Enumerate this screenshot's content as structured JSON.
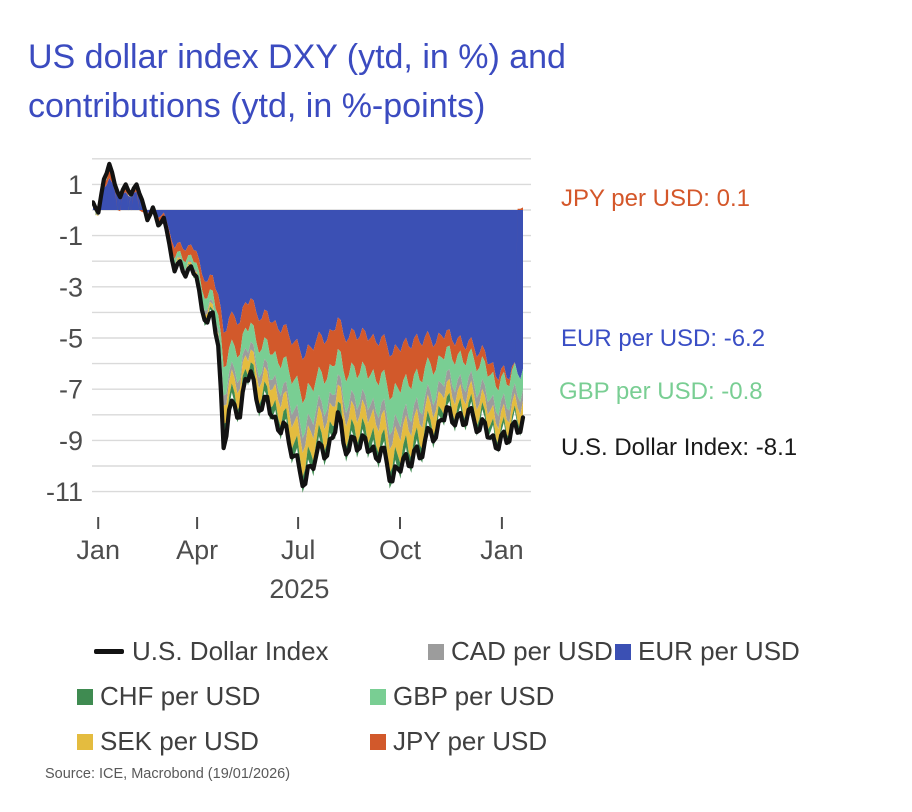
{
  "title": {
    "line1": "US dollar index DXY (ytd, in %) and",
    "line2": "contributions (ytd, in %-points)"
  },
  "annotations": [
    {
      "id": "jpy",
      "text": "JPY per USD: 0.1",
      "color": "#d4572a"
    },
    {
      "id": "eur",
      "text": "EUR per USD: -6.2",
      "color": "#3a4ec5"
    },
    {
      "id": "gbp",
      "text": "GBP per USD: -0.8",
      "color": "#79ce93"
    },
    {
      "id": "usd-index",
      "text": "U.S. Dollar Index: -8.1",
      "color": "#1a1a1a"
    }
  ],
  "legend": {
    "items": [
      {
        "label": "U.S. Dollar Index",
        "marker": "line",
        "color": "#121212"
      },
      {
        "label": "CAD per USD",
        "marker": "square",
        "color": "#9c9c9c"
      },
      {
        "label": "EUR per USD",
        "marker": "square",
        "color": "#3b50b4"
      },
      {
        "label": "CHF per USD",
        "marker": "square",
        "color": "#3f8b51"
      },
      {
        "label": "GBP per USD",
        "marker": "square",
        "color": "#79ce93"
      },
      {
        "label": "SEK per USD",
        "marker": "square",
        "color": "#e4bc3f"
      },
      {
        "label": "JPY per USD",
        "marker": "square",
        "color": "#d2592b"
      }
    ]
  },
  "source": {
    "text": "Source: ICE, Macrobond (19/01/2026)"
  },
  "chart_data": {
    "type": "area",
    "title": "US dollar index DXY (ytd, in %) and contributions (ytd, in %-points)",
    "ylabel": "",
    "xlabel": "",
    "ylim": [
      -11.5,
      2.1
    ],
    "grid": true,
    "x_axis": {
      "ticks": [
        {
          "label": "Jan",
          "pos": 0.012
        },
        {
          "label": "Apr",
          "pos": 0.242
        },
        {
          "label": "Jul",
          "pos": 0.477
        },
        {
          "label": "Oct",
          "pos": 0.714
        },
        {
          "label": "Jan",
          "pos": 0.951
        }
      ],
      "year_label": {
        "text": "2025",
        "pos": 0.48
      }
    },
    "y_axis": {
      "ticks": [
        {
          "label": "1",
          "value": 1
        },
        {
          "label": "-1",
          "value": -1
        },
        {
          "label": "-3",
          "value": -3
        },
        {
          "label": "-5",
          "value": -5
        },
        {
          "label": "-7",
          "value": -7
        },
        {
          "label": "-9",
          "value": -9
        },
        {
          "label": "-11",
          "value": -11
        }
      ],
      "gridline_max": 2,
      "gridline_min": -11,
      "gridline_step": 1
    },
    "final_values": {
      "usd_index": -8.1,
      "eur": -6.2,
      "gbp": -0.8,
      "jpy": 0.1
    },
    "line_series": {
      "id": "usd-index",
      "name": "U.S. Dollar Index",
      "color": "#121212",
      "values": [
        0.3,
        -0.1,
        1.2,
        1.8,
        1.0,
        0.5,
        1.0,
        0.6,
        1.0,
        0.4,
        -0.4,
        0.1,
        -0.6,
        -0.3,
        -1.3,
        -2.4,
        -2.0,
        -2.6,
        -2.2,
        -2.6,
        -3.9,
        -4.4,
        -4.0,
        -5.3,
        -9.3,
        -7.8,
        -7.6,
        -8.1,
        -6.6,
        -6.3,
        -7.4,
        -7.8,
        -7.3,
        -8.1,
        -8.6,
        -8.3,
        -9.1,
        -9.6,
        -10.2,
        -10.7,
        -10.0,
        -9.6,
        -9.2,
        -9.6,
        -8.9,
        -7.9,
        -9.1,
        -9.4,
        -8.9,
        -9.3,
        -8.9,
        -9.4,
        -9.7,
        -9.3,
        -9.9,
        -10.6,
        -10.1,
        -9.7,
        -10.0,
        -9.4,
        -9.7,
        -9.0,
        -8.6,
        -8.9,
        -8.2,
        -7.7,
        -8.3,
        -8.0,
        -8.4,
        -7.8,
        -8.2,
        -8.6,
        -8.3,
        -8.9,
        -9.3,
        -8.8,
        -9.1,
        -8.4,
        -8.7,
        -8.1
      ]
    },
    "stack_series": [
      {
        "id": "eur",
        "name": "EUR per USD",
        "color": "#3b50b4",
        "values": [
          0.25,
          0.1,
          0.85,
          1.25,
          0.75,
          0.45,
          0.7,
          0.5,
          0.72,
          0.35,
          -0.15,
          0.15,
          -0.3,
          -0.1,
          -0.8,
          -1.5,
          -1.25,
          -1.6,
          -1.35,
          -1.6,
          -2.5,
          -2.8,
          -2.55,
          -3.3,
          -4.8,
          -4.2,
          -4.15,
          -4.4,
          -3.6,
          -3.45,
          -4.0,
          -4.25,
          -3.95,
          -4.4,
          -4.65,
          -4.5,
          -4.9,
          -5.15,
          -5.45,
          -5.7,
          -5.35,
          -5.1,
          -4.9,
          -5.08,
          -4.72,
          -4.2,
          -4.85,
          -5.0,
          -4.72,
          -4.95,
          -4.74,
          -5.0,
          -5.17,
          -4.95,
          -5.27,
          -5.65,
          -5.38,
          -5.17,
          -5.32,
          -5.0,
          -5.17,
          -4.95,
          -5.0,
          -5.2,
          -4.9,
          -4.7,
          -5.1,
          -5.0,
          -5.3,
          -5.1,
          -5.35,
          -5.6,
          -5.5,
          -6.0,
          -6.5,
          -6.2,
          -6.55,
          -6.1,
          -6.4,
          -6.2
        ]
      },
      {
        "id": "jpy",
        "name": "JPY per USD",
        "color": "#d2592b",
        "values": [
          0.05,
          -0.15,
          0.2,
          0.3,
          0.1,
          -0.05,
          0.15,
          -0.02,
          0.12,
          -0.08,
          -0.2,
          -0.08,
          -0.22,
          -0.15,
          -0.25,
          -0.42,
          -0.35,
          -0.45,
          -0.4,
          -0.46,
          -0.6,
          -0.65,
          -0.6,
          -0.8,
          -1.35,
          -1.2,
          -1.15,
          -1.25,
          -1.0,
          -0.95,
          -1.15,
          -1.2,
          -1.12,
          -1.25,
          -1.33,
          -1.28,
          -1.4,
          -1.48,
          -1.57,
          -1.65,
          -1.55,
          -1.5,
          -1.43,
          -1.52,
          -1.39,
          -1.23,
          -1.42,
          -1.47,
          -1.39,
          -1.45,
          -1.37,
          -1.44,
          -1.51,
          -1.41,
          -1.54,
          -1.65,
          -1.57,
          -1.48,
          -1.55,
          -1.43,
          -1.48,
          -1.2,
          -1.0,
          -1.05,
          -0.85,
          -0.65,
          -0.75,
          -0.65,
          -0.65,
          -0.5,
          -0.48,
          -0.55,
          -0.42,
          -0.45,
          -0.4,
          -0.32,
          -0.28,
          -0.15,
          0.05,
          0.1
        ]
      },
      {
        "id": "gbp",
        "name": "GBP per USD",
        "color": "#79ce93",
        "values": [
          0.02,
          -0.05,
          0.1,
          0.15,
          0.1,
          0.08,
          0.1,
          0.08,
          0.1,
          0.08,
          -0.03,
          0.02,
          -0.05,
          -0.03,
          -0.12,
          -0.25,
          -0.2,
          -0.28,
          -0.22,
          -0.27,
          -0.4,
          -0.45,
          -0.4,
          -0.55,
          -1.1,
          -0.95,
          -0.9,
          -0.95,
          -0.78,
          -0.75,
          -0.88,
          -0.92,
          -0.88,
          -0.97,
          -1.03,
          -1.0,
          -1.1,
          -1.17,
          -1.25,
          -1.32,
          -1.24,
          -1.2,
          -1.15,
          -1.21,
          -1.12,
          -0.99,
          -1.14,
          -1.18,
          -1.12,
          -1.17,
          -1.12,
          -1.17,
          -1.22,
          -1.17,
          -1.25,
          -1.33,
          -1.27,
          -1.22,
          -1.26,
          -1.18,
          -1.22,
          -1.15,
          -1.1,
          -1.12,
          -1.02,
          -0.95,
          -1.02,
          -0.98,
          -1.0,
          -0.93,
          -0.95,
          -0.98,
          -0.92,
          -0.95,
          -0.97,
          -0.9,
          -0.92,
          -0.85,
          -0.88,
          -0.8
        ]
      },
      {
        "id": "cad",
        "name": "CAD per USD",
        "color": "#9c9c9c",
        "values": [
          0.0,
          -0.02,
          0.03,
          0.04,
          0.03,
          0.02,
          0.03,
          0.02,
          0.03,
          0.02,
          -0.01,
          0.01,
          -0.01,
          -0.01,
          -0.04,
          -0.07,
          -0.06,
          -0.08,
          -0.07,
          -0.08,
          -0.12,
          -0.15,
          -0.13,
          -0.18,
          -0.4,
          -0.35,
          -0.35,
          -0.38,
          -0.3,
          -0.3,
          -0.35,
          -0.37,
          -0.35,
          -0.38,
          -0.41,
          -0.4,
          -0.44,
          -0.47,
          -0.5,
          -0.53,
          -0.5,
          -0.48,
          -0.46,
          -0.48,
          -0.45,
          -0.4,
          -0.46,
          -0.47,
          -0.45,
          -0.47,
          -0.45,
          -0.47,
          -0.49,
          -0.47,
          -0.5,
          -0.53,
          -0.51,
          -0.49,
          -0.5,
          -0.47,
          -0.49,
          -0.45,
          -0.45,
          -0.46,
          -0.43,
          -0.42,
          -0.44,
          -0.43,
          -0.44,
          -0.42,
          -0.43,
          -0.44,
          -0.43,
          -0.44,
          -0.45,
          -0.44,
          -0.45,
          -0.42,
          -0.44,
          -0.45
        ]
      },
      {
        "id": "sek",
        "name": "SEK per USD",
        "color": "#e4bc3f",
        "values": [
          0.0,
          -0.02,
          0.02,
          0.04,
          0.02,
          0.01,
          0.02,
          0.01,
          0.02,
          0.02,
          -0.02,
          0.0,
          -0.03,
          -0.02,
          -0.06,
          -0.12,
          -0.1,
          -0.13,
          -0.11,
          -0.13,
          -0.2,
          -0.22,
          -0.2,
          -0.3,
          -0.7,
          -0.6,
          -0.58,
          -0.65,
          -0.52,
          -0.5,
          -0.6,
          -0.63,
          -0.6,
          -0.66,
          -0.7,
          -0.68,
          -0.75,
          -0.8,
          -0.86,
          -0.9,
          -0.84,
          -0.8,
          -0.77,
          -0.81,
          -0.75,
          -0.66,
          -0.76,
          -0.79,
          -0.75,
          -0.78,
          -0.75,
          -0.78,
          -0.81,
          -0.78,
          -0.83,
          -0.89,
          -0.85,
          -0.81,
          -0.84,
          -0.78,
          -0.81,
          -0.72,
          -0.65,
          -0.65,
          -0.6,
          -0.58,
          -0.6,
          -0.58,
          -0.6,
          -0.56,
          -0.57,
          -0.58,
          -0.55,
          -0.57,
          -0.58,
          -0.55,
          -0.56,
          -0.52,
          -0.54,
          -0.55
        ]
      },
      {
        "id": "chf",
        "name": "CHF per USD",
        "color": "#3f8b51",
        "values": [
          0.0,
          0.0,
          0.02,
          0.03,
          0.02,
          0.01,
          0.02,
          0.01,
          0.02,
          0.01,
          -0.01,
          0.0,
          -0.02,
          -0.01,
          -0.04,
          -0.06,
          -0.05,
          -0.07,
          -0.06,
          -0.07,
          -0.12,
          -0.15,
          -0.13,
          -0.2,
          -0.45,
          -0.4,
          -0.4,
          -0.42,
          -0.35,
          -0.33,
          -0.4,
          -0.42,
          -0.4,
          -0.43,
          -0.46,
          -0.44,
          -0.49,
          -0.52,
          -0.55,
          -0.58,
          -0.54,
          -0.52,
          -0.5,
          -0.51,
          -0.48,
          -0.43,
          -0.49,
          -0.51,
          -0.48,
          -0.5,
          -0.47,
          -0.5,
          -0.52,
          -0.5,
          -0.53,
          -0.57,
          -0.54,
          -0.52,
          -0.54,
          -0.5,
          -0.52,
          -0.45,
          -0.42,
          -0.42,
          -0.38,
          -0.36,
          -0.37,
          -0.36,
          -0.36,
          -0.34,
          -0.34,
          -0.34,
          -0.3,
          -0.28,
          -0.28,
          -0.26,
          -0.26,
          -0.23,
          -0.2,
          -0.2
        ]
      }
    ]
  }
}
